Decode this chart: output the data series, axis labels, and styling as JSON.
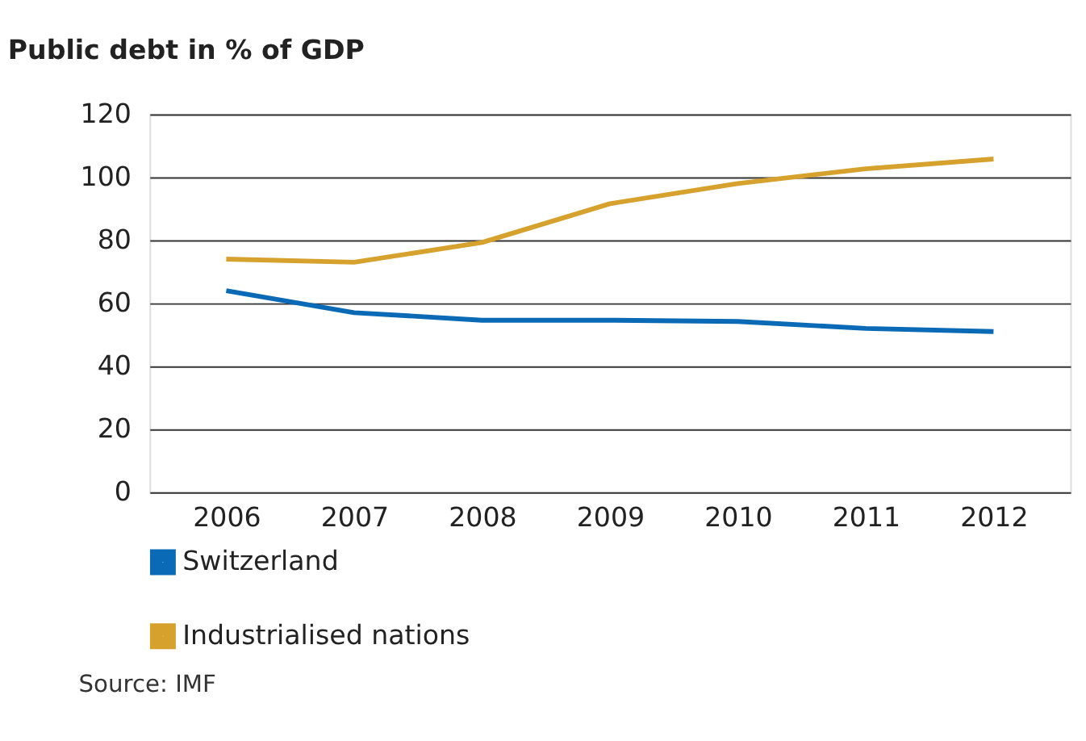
{
  "chart_data": {
    "type": "line",
    "title": "Public debt in % of GDP",
    "categories": [
      "2006",
      "2007",
      "2008",
      "2009",
      "2010",
      "2011",
      "2012"
    ],
    "series": [
      {
        "name": "Switzerland",
        "color": "#0a6ab6",
        "values": [
          64,
          57,
          54.6,
          54.6,
          54.2,
          52,
          51
        ]
      },
      {
        "name": "Industrialised nations",
        "color": "#d6a12c",
        "values": [
          74,
          73,
          79.3,
          91.6,
          98,
          102.7,
          105.8
        ]
      }
    ],
    "ylim": [
      0,
      120
    ],
    "yticks": [
      0,
      20,
      40,
      60,
      80,
      100,
      120
    ],
    "grid": "y",
    "legend": "bottom left",
    "marker": "none",
    "line_style": "solid",
    "annotations": [
      "Source: IMF"
    ]
  }
}
